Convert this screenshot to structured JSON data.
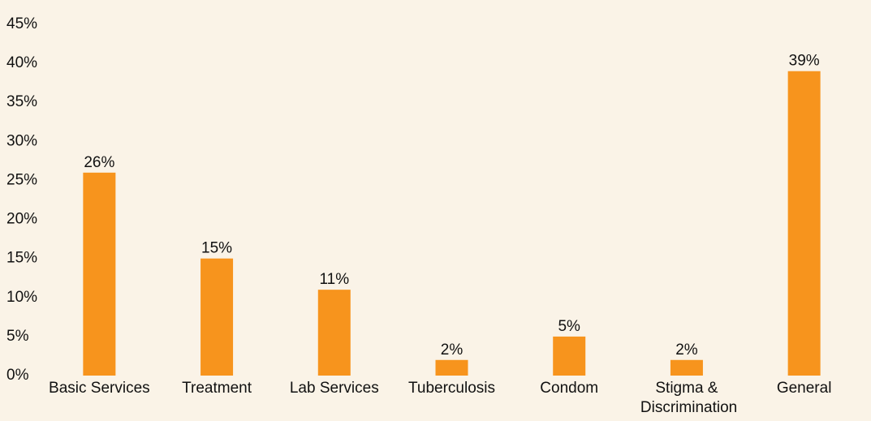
{
  "chart_data": {
    "type": "bar",
    "categories": [
      "Basic Services",
      "Treatment",
      "Lab Services",
      "Tuberculosis",
      "Condom",
      "Stigma & Discrimination",
      "General"
    ],
    "values": [
      26,
      15,
      11,
      2,
      5,
      2,
      39
    ],
    "value_labels": [
      "26%",
      "15%",
      "11%",
      "2%",
      "5%",
      "2%",
      "39%"
    ],
    "color": "#f7941d",
    "ylim": [
      0,
      45
    ],
    "yticks": [
      {
        "value": 0,
        "label": "0%"
      },
      {
        "value": 5,
        "label": "5%"
      },
      {
        "value": 10,
        "label": "10%"
      },
      {
        "value": 15,
        "label": "15%"
      },
      {
        "value": 20,
        "label": "20%"
      },
      {
        "value": 25,
        "label": "25%"
      },
      {
        "value": 30,
        "label": "30%"
      },
      {
        "value": 35,
        "label": "35%"
      },
      {
        "value": 40,
        "label": "40%"
      },
      {
        "value": 45,
        "label": "45%"
      }
    ],
    "grid": false
  }
}
